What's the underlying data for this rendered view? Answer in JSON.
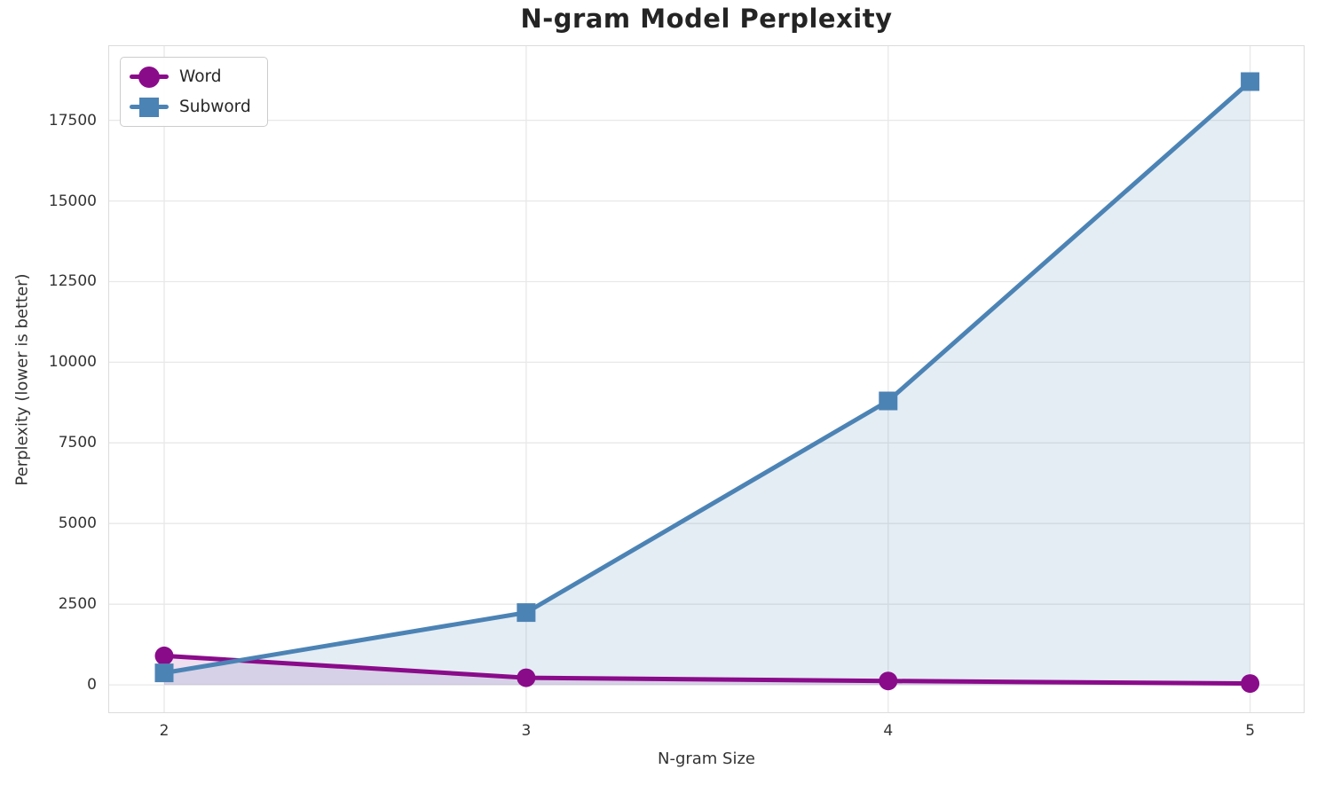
{
  "chart_data": {
    "type": "line",
    "title": "N-gram Model Perplexity",
    "xlabel": "N-gram Size",
    "ylabel": "Perplexity (lower is better)",
    "x": [
      2,
      3,
      4,
      5
    ],
    "series": [
      {
        "name": "Word",
        "marker": "circle",
        "color": "#8a0b8a",
        "fill_color": "rgba(135,10,135,0.13)",
        "values": [
          900,
          220,
          120,
          40
        ]
      },
      {
        "name": "Subword",
        "marker": "square",
        "color": "#4c83b5",
        "fill_color": "rgba(76,131,181,0.15)",
        "values": [
          370,
          2240,
          8800,
          18700
        ]
      }
    ],
    "xticks": [
      2,
      3,
      4,
      5
    ],
    "yticks": [
      0,
      2500,
      5000,
      7500,
      10000,
      12500,
      15000,
      17500
    ],
    "xlim": [
      1.848,
      5.148
    ],
    "ylim": [
      -850,
      19800
    ],
    "grid": true,
    "area_fill_baseline": 0,
    "legend_position": "upper left"
  }
}
